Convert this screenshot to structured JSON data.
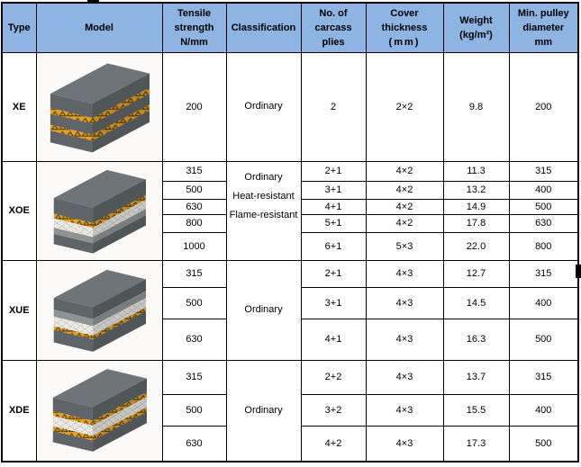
{
  "colors": {
    "header_bg": "#8DB4E2",
    "border": "#000000",
    "belt_orange": "#E8A11E",
    "belt_rubber_gray": "#5F6468",
    "belt_fabric_white": "#EAE9E4"
  },
  "header": {
    "columns": [
      {
        "lines": [
          "Type"
        ]
      },
      {
        "lines": [
          "Model"
        ]
      },
      {
        "lines": [
          "Tensile",
          "strength",
          "N/mm"
        ]
      },
      {
        "lines": [
          "Classification"
        ]
      },
      {
        "lines": [
          "No. of",
          "carcass",
          "plies"
        ]
      },
      {
        "lines": [
          "Cover",
          "thickness",
          "(mm)"
        ]
      },
      {
        "lines": [
          "Weight",
          "(kg/m²)"
        ]
      },
      {
        "lines": [
          "Min. pulley",
          "diameter",
          "mm"
        ]
      }
    ]
  },
  "groups": [
    {
      "type": "XE",
      "belt": {
        "icon": "belt-cross-section-xe",
        "layers": [
          {
            "kind": "rubber",
            "h": 17
          },
          {
            "kind": "weave",
            "h": 7
          },
          {
            "kind": "rubber",
            "h": 13
          },
          {
            "kind": "weave",
            "h": 7
          },
          {
            "kind": "rubber",
            "h": 14
          }
        ]
      },
      "classification": [
        "Ordinary"
      ],
      "rows": [
        {
          "strength": "200",
          "plies": "2",
          "cover": "2×2",
          "weight": "9.8",
          "pulley": "200"
        }
      ]
    },
    {
      "type": "XOE",
      "belt": {
        "icon": "belt-cross-section-xoe",
        "layers": [
          {
            "kind": "rubber",
            "h": 20
          },
          {
            "kind": "weave",
            "h": 6
          },
          {
            "kind": "fabric",
            "h": 12
          },
          {
            "kind": "gray",
            "h": 8
          },
          {
            "kind": "rubber",
            "h": 13
          }
        ]
      },
      "classification": [
        "Ordinary",
        "Heat-resistant",
        "Flame-resistant"
      ],
      "rows": [
        {
          "strength": "315",
          "plies": "2+1",
          "cover": "4×2",
          "weight": "11.3",
          "pulley": "315"
        },
        {
          "strength": "500",
          "plies": "3+1",
          "cover": "4×2",
          "weight": "13.2",
          "pulley": "400"
        },
        {
          "strength": "630",
          "plies": "4+1",
          "cover": "4×2",
          "weight": "14.9",
          "pulley": "500"
        },
        {
          "strength": "800",
          "plies": "5+1",
          "cover": "4×2",
          "weight": "17.8",
          "pulley": "630"
        },
        {
          "strength": "1000",
          "plies": "6+1",
          "cover": "5×3",
          "weight": "22.0",
          "pulley": "800"
        }
      ]
    },
    {
      "type": "XUE",
      "belt": {
        "icon": "belt-cross-section-xue",
        "layers": [
          {
            "kind": "rubber",
            "h": 15
          },
          {
            "kind": "gray",
            "h": 9
          },
          {
            "kind": "fabric",
            "h": 12
          },
          {
            "kind": "weave",
            "h": 5
          },
          {
            "kind": "rubber",
            "h": 16
          }
        ]
      },
      "classification": [
        "Ordinary"
      ],
      "rows": [
        {
          "strength": "315",
          "plies": "2+1",
          "cover": "4×3",
          "weight": "12.7",
          "pulley": "315"
        },
        {
          "strength": "500",
          "plies": "3+1",
          "cover": "4×3",
          "weight": "14.5",
          "pulley": "400"
        },
        {
          "strength": "630",
          "plies": "4+1",
          "cover": "4×3",
          "weight": "16.3",
          "pulley": "500"
        }
      ]
    },
    {
      "type": "XDE",
      "belt": {
        "icon": "belt-cross-section-xde",
        "layers": [
          {
            "kind": "rubber",
            "h": 17
          },
          {
            "kind": "weave",
            "h": 6
          },
          {
            "kind": "fabric",
            "h": 13
          },
          {
            "kind": "weave",
            "h": 6
          },
          {
            "kind": "rubber",
            "h": 14
          }
        ]
      },
      "classification": [
        "Ordinary"
      ],
      "rows": [
        {
          "strength": "315",
          "plies": "2+2",
          "cover": "4×3",
          "weight": "13.7",
          "pulley": "315"
        },
        {
          "strength": "500",
          "plies": "3+2",
          "cover": "4×3",
          "weight": "15.5",
          "pulley": "400"
        },
        {
          "strength": "630",
          "plies": "4+2",
          "cover": "4×3",
          "weight": "17.3",
          "pulley": "500"
        }
      ]
    }
  ]
}
